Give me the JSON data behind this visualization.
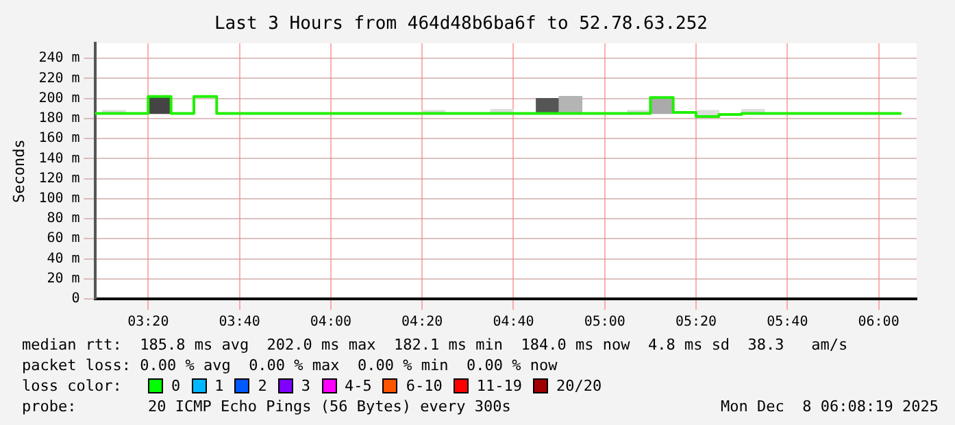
{
  "chart_data": {
    "type": "step",
    "title": "Last 3 Hours from 464d48b6ba6f to 52.78.63.252",
    "ylabel": "Seconds",
    "xlim": [
      3.1389,
      6.1386
    ],
    "xticks": [
      {
        "value": 3.3333,
        "label": "03:20"
      },
      {
        "value": 3.6667,
        "label": "03:40"
      },
      {
        "value": 4,
        "label": "04:00"
      },
      {
        "value": 4.3333,
        "label": "04:20"
      },
      {
        "value": 4.6667,
        "label": "04:40"
      },
      {
        "value": 5,
        "label": "05:00"
      },
      {
        "value": 5.3333,
        "label": "05:20"
      },
      {
        "value": 5.6667,
        "label": "05:40"
      },
      {
        "value": 6,
        "label": "06:00"
      }
    ],
    "ylim": [
      0,
      255
    ],
    "yticks": [
      {
        "value": 0,
        "label": "0"
      },
      {
        "value": 20,
        "label": "20 m"
      },
      {
        "value": 40,
        "label": "40 m"
      },
      {
        "value": 60,
        "label": "60 m"
      },
      {
        "value": 80,
        "label": "80 m"
      },
      {
        "value": 100,
        "label": "100 m"
      },
      {
        "value": 120,
        "label": "120 m"
      },
      {
        "value": 140,
        "label": "140 m"
      },
      {
        "value": 160,
        "label": "160 m"
      },
      {
        "value": 180,
        "label": "180 m"
      },
      {
        "value": 200,
        "label": "200 m"
      },
      {
        "value": 220,
        "label": "220 m"
      },
      {
        "value": 240,
        "label": "240 m"
      }
    ],
    "grid": true,
    "series": [
      {
        "type": "bar",
        "x": [
          3.2083,
          3.375,
          4.375,
          4.625,
          4.7917,
          4.875,
          5.125,
          5.2083,
          5.375,
          5.5417
        ],
        "base": [
          185,
          185,
          185,
          185,
          185,
          185,
          185,
          185,
          182,
          185
        ],
        "values": [
          3,
          17,
          3,
          4,
          15,
          17,
          3,
          16,
          6,
          4
        ],
        "colors": [
          "#dddddd",
          "#444444",
          "#dddddd",
          "#dddddd",
          "#555555",
          "#b4b4b4",
          "#dddddd",
          "#aaaaaa",
          "#dddddd",
          "#dddddd"
        ]
      },
      {
        "color": "#20f000",
        "x": [
          3.1389,
          3.3333,
          3.4167,
          3.5,
          3.5833,
          5.1667,
          5.25,
          5.3333,
          5.4167,
          5.5,
          6.0833
        ],
        "values": [
          185,
          202,
          185,
          202,
          185,
          201,
          186,
          182,
          184,
          185,
          185
        ]
      }
    ],
    "annotations": [
      "median rtt:  185.8 ms avg  202.0 ms max  182.1 ms min  184.0 ms now  4.8 ms sd  38.3   am/s",
      "packet loss: 0.00 % avg  0.00 % max  0.00 % min  0.00 % now",
      "loss color:",
      "0",
      "1",
      "2",
      "3",
      "4-5",
      "6-10",
      "11-19",
      "20/20",
      "probe:",
      "20 ICMP Echo Pings (56 Bytes) every 300s",
      "Mon Dec  8 06:08:19 2025"
    ]
  }
}
